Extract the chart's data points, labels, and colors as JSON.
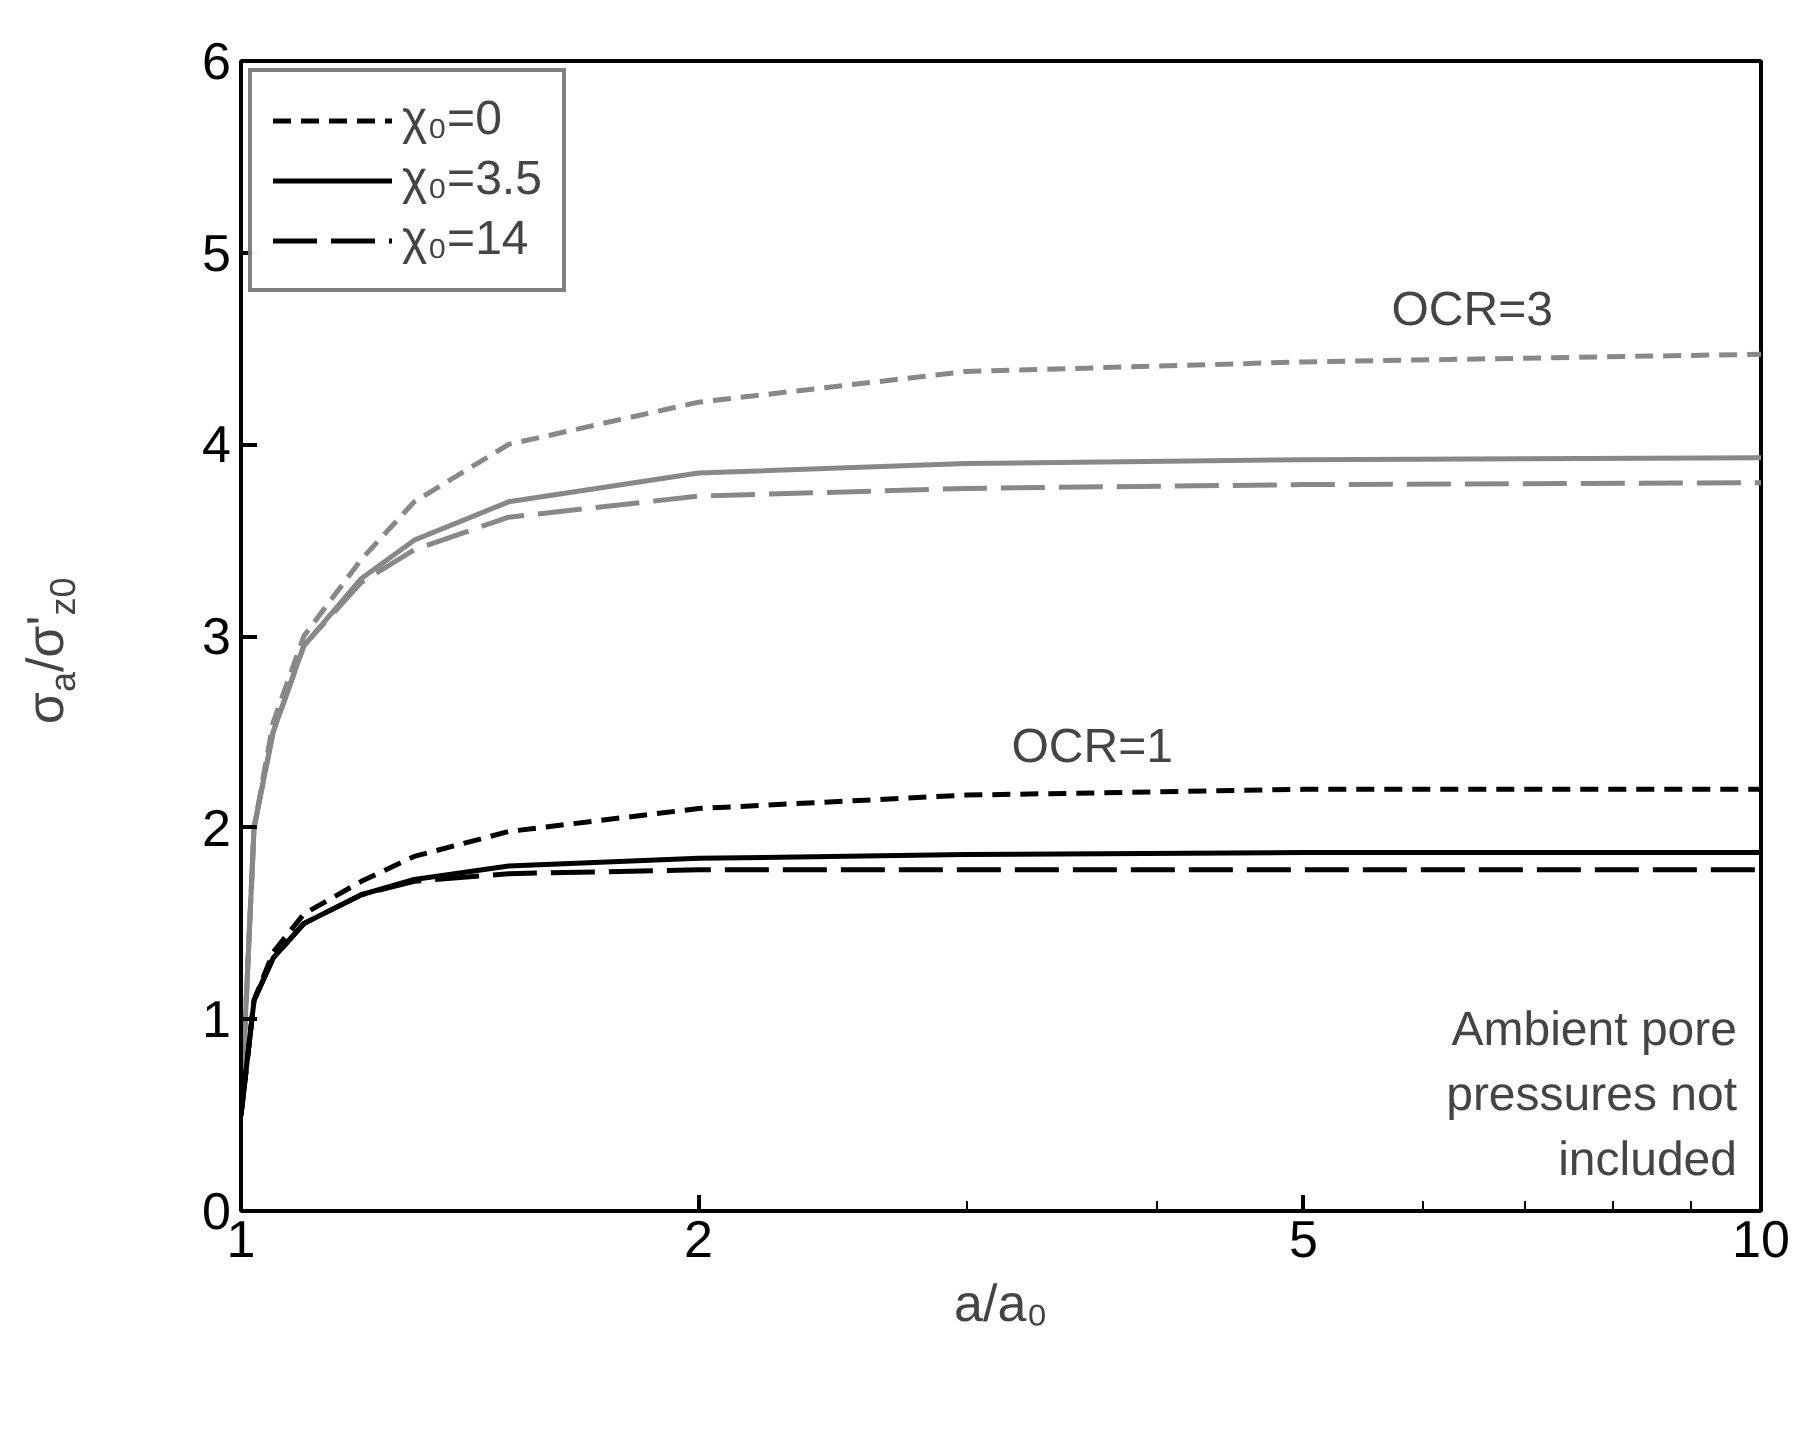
{
  "chart_data": {
    "type": "line",
    "xlabel": "a/a₀",
    "ylabel": "σ$_{a}$/σ'$_{z0}$",
    "log": "x",
    "xlim": [
      1,
      10
    ],
    "xticks": [
      1,
      2,
      {
        "value": 3,
        "label": null
      },
      {
        "value": 4,
        "label": null
      },
      5,
      {
        "value": 6,
        "label": null
      },
      {
        "value": 7,
        "label": null
      },
      {
        "value": 8,
        "label": null
      },
      {
        "value": 9,
        "label": null
      },
      10
    ],
    "ylim": [
      0,
      6
    ],
    "yticks": [
      0,
      1,
      2,
      3,
      4,
      5,
      6
    ],
    "grid": false,
    "legend": "top left",
    "marker": "none",
    "x": [
      1,
      1.02,
      1.05,
      1.1,
      1.2,
      1.3,
      1.5,
      2,
      3,
      5,
      10
    ],
    "series": [
      {
        "color": "#888888",
        "line_style": "dotted",
        "values": [
          0.5,
          2.0,
          2.55,
          3.0,
          3.4,
          3.7,
          4.0,
          4.22,
          4.38,
          4.43,
          4.47
        ]
      },
      {
        "color": "#888888",
        "line_style": "solid",
        "values": [
          0.5,
          2.0,
          2.5,
          2.95,
          3.3,
          3.5,
          3.7,
          3.85,
          3.9,
          3.92,
          3.93
        ]
      },
      {
        "color": "#888888",
        "line_style": "dashed",
        "values": [
          0.5,
          2.0,
          2.5,
          2.95,
          3.28,
          3.45,
          3.62,
          3.73,
          3.77,
          3.79,
          3.8
        ]
      },
      {
        "name": "χ₀=0",
        "color": "#000000",
        "line_style": "dotted",
        "values": [
          0.5,
          1.1,
          1.35,
          1.55,
          1.72,
          1.85,
          1.98,
          2.1,
          2.17,
          2.2,
          2.2
        ]
      },
      {
        "name": "χ₀=3.5",
        "color": "#000000",
        "line_style": "solid",
        "values": [
          0.5,
          1.1,
          1.32,
          1.5,
          1.65,
          1.73,
          1.8,
          1.84,
          1.86,
          1.87,
          1.87
        ]
      },
      {
        "name": "χ₀=14",
        "color": "#000000",
        "line_style": "dashed",
        "values": [
          0.5,
          1.1,
          1.32,
          1.5,
          1.65,
          1.72,
          1.76,
          1.78,
          1.78,
          1.78,
          1.78
        ]
      }
    ],
    "annotations": [
      "OCR=3",
      "OCR=1",
      "Ambient pore pressures not included"
    ]
  }
}
